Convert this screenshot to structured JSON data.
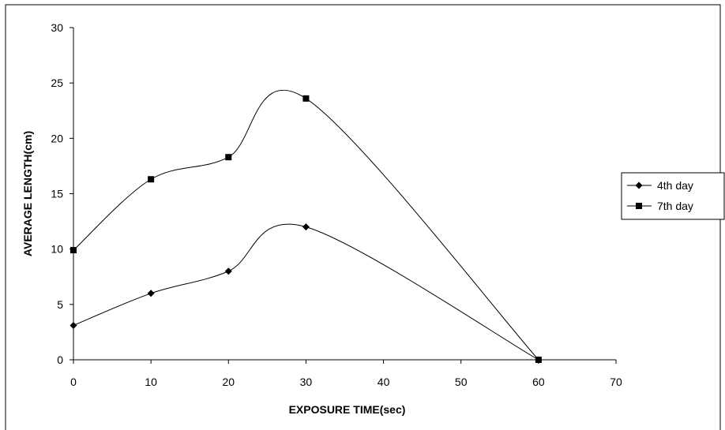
{
  "chart_data": {
    "type": "line",
    "smooth": true,
    "title": "",
    "xlabel": "EXPOSURE TIME(sec)",
    "ylabel": "AVERAGE LENGTH(cm)",
    "xlim": [
      0,
      70
    ],
    "ylim": [
      0,
      30
    ],
    "x_ticks": [
      0,
      10,
      20,
      30,
      40,
      50,
      60,
      70
    ],
    "y_ticks": [
      0,
      5,
      10,
      15,
      20,
      25,
      30
    ],
    "grid": false,
    "legend_position": "right",
    "x": [
      0,
      10,
      20,
      30,
      60
    ],
    "series": [
      {
        "name": "4th day",
        "marker": "diamond",
        "color": "#000000",
        "values": [
          3.1,
          6.0,
          8.0,
          12.0,
          0.0
        ]
      },
      {
        "name": "7th day",
        "marker": "square",
        "color": "#000000",
        "values": [
          9.9,
          16.3,
          18.3,
          23.6,
          0.0
        ]
      }
    ]
  }
}
